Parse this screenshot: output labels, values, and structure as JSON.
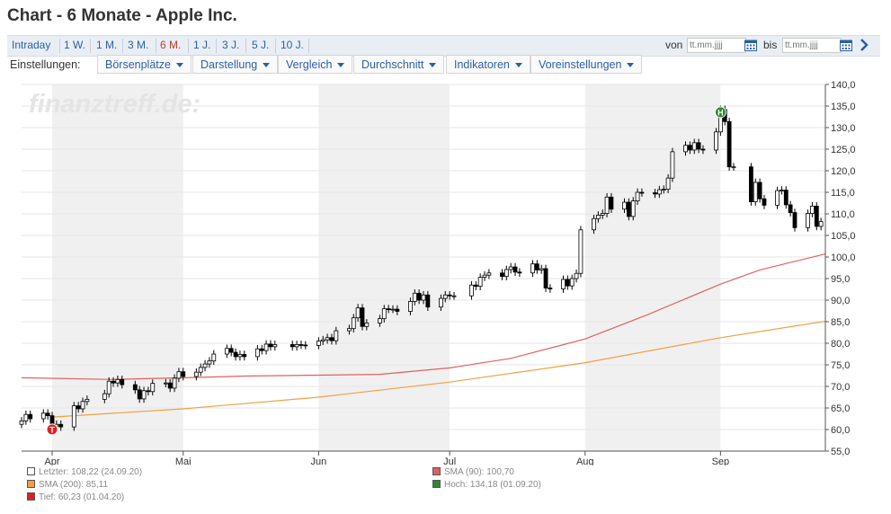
{
  "page": {
    "title": "Chart - 6 Monate - Apple Inc."
  },
  "tabs": [
    {
      "label": "Intraday",
      "active": false
    },
    {
      "label": "1 W.",
      "active": false
    },
    {
      "label": "1 M.",
      "active": false
    },
    {
      "label": "3 M.",
      "active": false
    },
    {
      "label": "6 M.",
      "active": true
    },
    {
      "label": "1 J.",
      "active": false
    },
    {
      "label": "3 J.",
      "active": false
    },
    {
      "label": "5 J.",
      "active": false
    },
    {
      "label": "10 J.",
      "active": false
    }
  ],
  "range": {
    "from_label": "von",
    "to_label": "bis",
    "from_placeholder": "tt.mm.jjjj",
    "to_placeholder": "tt.mm.jjjj"
  },
  "settings": {
    "label": "Einstellungen:",
    "menus": [
      "Börsenplätze",
      "Darstellung",
      "Vergleich",
      "Durchschnitt",
      "Indikatoren",
      "Voreinstellungen"
    ]
  },
  "watermark": "finanztreff.de:",
  "legend": {
    "last": "Letzter: 108,22 (24.09.20)",
    "sma200": "SMA (200): 85,11",
    "low": "Tief: 60,23 (01.04.20)",
    "sma90": "SMA (90): 100,70",
    "high": "Hoch: 134,18 (01.09.20)"
  },
  "colors": {
    "sma90": "#e06060",
    "sma200": "#f0a040",
    "low": "#e02020",
    "high": "#2a8a2a",
    "shade": "#f0f0f0"
  },
  "chart_data": {
    "type": "candlestick",
    "title": "Chart - 6 Monate - Apple Inc.",
    "ylim": [
      55,
      140
    ],
    "yticks": [
      55,
      60,
      65,
      70,
      75,
      80,
      85,
      90,
      95,
      100,
      105,
      110,
      115,
      120,
      125,
      130,
      135,
      140
    ],
    "ytick_labels": [
      "55,0",
      "60,0",
      "65,0",
      "70,0",
      "75,0",
      "80,0",
      "85,0",
      "90,0",
      "95,0",
      "100,0",
      "105,0",
      "110,0",
      "115,0",
      "120,0",
      "125,0",
      "130,0",
      "135,0",
      "140,0"
    ],
    "date_range": [
      "2020-03-25",
      "2020-09-25"
    ],
    "month_ticks": [
      {
        "label": "Apr",
        "date": "2020-04-01"
      },
      {
        "label": "Mai",
        "date": "2020-05-01"
      },
      {
        "label": "Jun",
        "date": "2020-06-01"
      },
      {
        "label": "Jul",
        "date": "2020-07-01"
      },
      {
        "label": "Aug",
        "date": "2020-08-01"
      },
      {
        "label": "Sep",
        "date": "2020-09-01"
      }
    ],
    "close_series": [
      [
        "2020-03-25",
        62.0
      ],
      [
        "2020-03-26",
        63.5
      ],
      [
        "2020-03-27",
        62.5
      ],
      [
        "2020-03-30",
        63.8
      ],
      [
        "2020-03-31",
        63.2
      ],
      [
        "2020-04-01",
        60.8
      ],
      [
        "2020-04-02",
        61.2
      ],
      [
        "2020-04-03",
        60.6
      ],
      [
        "2020-04-06",
        65.5
      ],
      [
        "2020-04-07",
        64.8
      ],
      [
        "2020-04-08",
        66.5
      ],
      [
        "2020-04-09",
        67.0
      ],
      [
        "2020-04-13",
        68.3
      ],
      [
        "2020-04-14",
        71.2
      ],
      [
        "2020-04-15",
        70.8
      ],
      [
        "2020-04-16",
        71.6
      ],
      [
        "2020-04-17",
        70.4
      ],
      [
        "2020-04-20",
        69.2
      ],
      [
        "2020-04-21",
        67.1
      ],
      [
        "2020-04-22",
        69.0
      ],
      [
        "2020-04-23",
        68.8
      ],
      [
        "2020-04-24",
        70.7
      ],
      [
        "2020-04-27",
        70.8
      ],
      [
        "2020-04-28",
        69.6
      ],
      [
        "2020-04-29",
        71.9
      ],
      [
        "2020-04-30",
        73.4
      ],
      [
        "2020-05-01",
        72.3
      ],
      [
        "2020-05-04",
        73.3
      ],
      [
        "2020-05-05",
        74.4
      ],
      [
        "2020-05-06",
        75.2
      ],
      [
        "2020-05-07",
        75.9
      ],
      [
        "2020-05-08",
        77.5
      ],
      [
        "2020-05-11",
        78.8
      ],
      [
        "2020-05-12",
        77.9
      ],
      [
        "2020-05-13",
        76.9
      ],
      [
        "2020-05-14",
        77.4
      ],
      [
        "2020-05-15",
        76.9
      ],
      [
        "2020-05-18",
        78.7
      ],
      [
        "2020-05-19",
        78.3
      ],
      [
        "2020-05-20",
        79.8
      ],
      [
        "2020-05-21",
        79.2
      ],
      [
        "2020-05-22",
        79.7
      ],
      [
        "2020-05-26",
        79.2
      ],
      [
        "2020-05-27",
        79.7
      ],
      [
        "2020-05-28",
        79.6
      ],
      [
        "2020-05-29",
        79.5
      ],
      [
        "2020-06-01",
        80.5
      ],
      [
        "2020-06-02",
        80.8
      ],
      [
        "2020-06-03",
        81.3
      ],
      [
        "2020-06-04",
        80.6
      ],
      [
        "2020-06-05",
        82.9
      ],
      [
        "2020-06-08",
        83.4
      ],
      [
        "2020-06-09",
        85.9
      ],
      [
        "2020-06-10",
        88.2
      ],
      [
        "2020-06-11",
        83.9
      ],
      [
        "2020-06-12",
        84.7
      ],
      [
        "2020-06-15",
        85.7
      ],
      [
        "2020-06-16",
        88.0
      ],
      [
        "2020-06-17",
        87.9
      ],
      [
        "2020-06-18",
        87.9
      ],
      [
        "2020-06-19",
        87.4
      ],
      [
        "2020-06-22",
        89.7
      ],
      [
        "2020-06-23",
        91.6
      ],
      [
        "2020-06-24",
        90.0
      ],
      [
        "2020-06-25",
        91.2
      ],
      [
        "2020-06-26",
        88.4
      ],
      [
        "2020-06-29",
        90.4
      ],
      [
        "2020-06-30",
        91.2
      ],
      [
        "2020-07-01",
        91.0
      ],
      [
        "2020-07-02",
        91.0
      ],
      [
        "2020-07-06",
        93.5
      ],
      [
        "2020-07-07",
        93.2
      ],
      [
        "2020-07-08",
        95.3
      ],
      [
        "2020-07-09",
        95.8
      ],
      [
        "2020-07-10",
        96.3
      ],
      [
        "2020-07-13",
        95.5
      ],
      [
        "2020-07-14",
        97.1
      ],
      [
        "2020-07-15",
        97.7
      ],
      [
        "2020-07-16",
        96.5
      ],
      [
        "2020-07-17",
        96.3
      ],
      [
        "2020-07-20",
        98.4
      ],
      [
        "2020-07-21",
        97.0
      ],
      [
        "2020-07-22",
        97.3
      ],
      [
        "2020-07-23",
        92.8
      ],
      [
        "2020-07-24",
        92.6
      ],
      [
        "2020-07-27",
        94.8
      ],
      [
        "2020-07-28",
        93.3
      ],
      [
        "2020-07-29",
        95.0
      ],
      [
        "2020-07-30",
        96.2
      ],
      [
        "2020-07-31",
        106.3
      ],
      [
        "2020-08-03",
        108.9
      ],
      [
        "2020-08-04",
        109.7
      ],
      [
        "2020-08-05",
        110.1
      ],
      [
        "2020-08-06",
        113.9
      ],
      [
        "2020-08-07",
        111.1
      ],
      [
        "2020-08-10",
        112.7
      ],
      [
        "2020-08-11",
        109.4
      ],
      [
        "2020-08-12",
        113.0
      ],
      [
        "2020-08-13",
        115.0
      ],
      [
        "2020-08-14",
        114.9
      ],
      [
        "2020-08-17",
        114.6
      ],
      [
        "2020-08-18",
        115.6
      ],
      [
        "2020-08-19",
        115.7
      ],
      [
        "2020-08-20",
        118.3
      ],
      [
        "2020-08-21",
        124.4
      ],
      [
        "2020-08-24",
        125.9
      ],
      [
        "2020-08-25",
        124.8
      ],
      [
        "2020-08-26",
        126.5
      ],
      [
        "2020-08-27",
        125.0
      ],
      [
        "2020-08-28",
        124.8
      ],
      [
        "2020-08-31",
        129.0
      ],
      [
        "2020-09-01",
        134.2
      ],
      [
        "2020-09-02",
        131.4
      ],
      [
        "2020-09-03",
        120.9
      ],
      [
        "2020-09-04",
        120.9
      ],
      [
        "2020-09-08",
        112.8
      ],
      [
        "2020-09-09",
        117.3
      ],
      [
        "2020-09-10",
        113.5
      ],
      [
        "2020-09-11",
        112.0
      ],
      [
        "2020-09-14",
        115.4
      ],
      [
        "2020-09-15",
        115.5
      ],
      [
        "2020-09-16",
        112.1
      ],
      [
        "2020-09-17",
        110.3
      ],
      [
        "2020-09-18",
        106.8
      ],
      [
        "2020-09-21",
        110.1
      ],
      [
        "2020-09-22",
        111.8
      ],
      [
        "2020-09-23",
        107.1
      ],
      [
        "2020-09-24",
        108.2
      ]
    ],
    "series": [
      {
        "name": "SMA (90)",
        "color": "#e06060",
        "points": [
          [
            "2020-03-25",
            72.0
          ],
          [
            "2020-04-15",
            71.6
          ],
          [
            "2020-05-01",
            72.0
          ],
          [
            "2020-05-15",
            72.4
          ],
          [
            "2020-06-01",
            72.6
          ],
          [
            "2020-06-15",
            72.8
          ],
          [
            "2020-07-01",
            74.3
          ],
          [
            "2020-07-15",
            76.5
          ],
          [
            "2020-08-01",
            81.0
          ],
          [
            "2020-08-15",
            86.5
          ],
          [
            "2020-09-01",
            93.7
          ],
          [
            "2020-09-10",
            97.0
          ],
          [
            "2020-09-25",
            100.7
          ]
        ]
      },
      {
        "name": "SMA (200)",
        "color": "#f0a040",
        "points": [
          [
            "2020-04-01",
            62.9
          ],
          [
            "2020-05-01",
            64.8
          ],
          [
            "2020-06-01",
            67.5
          ],
          [
            "2020-07-01",
            71.0
          ],
          [
            "2020-08-01",
            75.5
          ],
          [
            "2020-09-01",
            81.3
          ],
          [
            "2020-09-25",
            85.1
          ]
        ]
      }
    ],
    "markers": [
      {
        "label": "T",
        "date": "2020-04-01",
        "value": 60.23,
        "color": "#e02020"
      },
      {
        "label": "H",
        "date": "2020-09-01",
        "value": 134.18,
        "color": "#2a8a2a"
      }
    ],
    "legend_position": "bottom"
  }
}
